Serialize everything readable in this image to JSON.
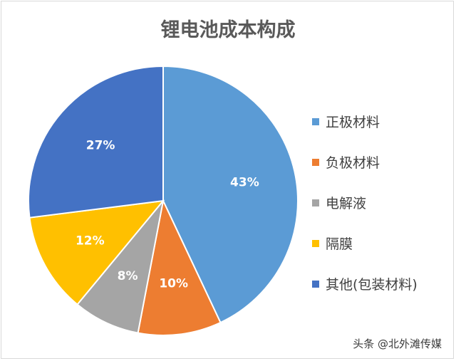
{
  "chart_data": {
    "type": "pie",
    "title": "锂电池成本构成",
    "categories": [
      "正极材料",
      "负极材料",
      "电解液",
      "隔膜",
      "其他(包装材料)"
    ],
    "values": [
      43,
      10,
      8,
      12,
      27
    ],
    "value_labels": [
      "43%",
      "10%",
      "8%",
      "12%",
      "27%"
    ],
    "colors": [
      "#5b9bd5",
      "#ed7d31",
      "#a5a5a5",
      "#ffc000",
      "#4472c4"
    ],
    "legend_position": "right"
  },
  "watermark": "头条 @北外滩传媒"
}
